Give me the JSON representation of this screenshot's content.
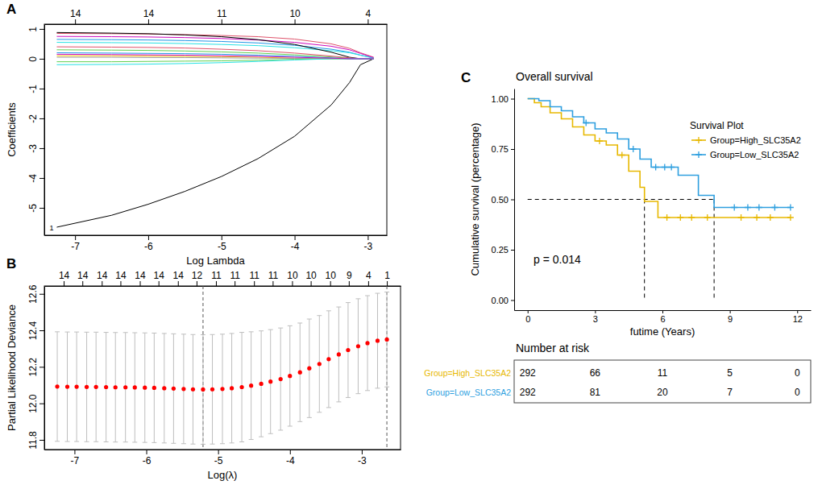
{
  "chart_data": [
    {
      "panel": "A",
      "type": "line",
      "x_label": "Log Lambda",
      "y_label": "Coefficients",
      "x": [
        -7.25,
        -6.5,
        -6,
        -5.5,
        -5,
        -4.5,
        -4,
        -3.5,
        -3.25,
        -3.1,
        -2.92
      ],
      "series": [
        {
          "name": "1",
          "color": "#000000",
          "values": [
            -5.65,
            -5.25,
            -4.88,
            -4.45,
            -3.95,
            -3.35,
            -2.6,
            -1.55,
            -0.8,
            -0.2,
            0
          ]
        },
        {
          "color": "#DF536B",
          "values": [
            0.85,
            0.84,
            0.83,
            0.81,
            0.78,
            0.74,
            0.66,
            0.5,
            0.35,
            0.2,
            0.05
          ]
        },
        {
          "color": "#61D04F",
          "values": [
            0.3,
            0.29,
            0.28,
            0.26,
            0.23,
            0.19,
            0.13,
            0.06,
            0.02,
            0,
            0
          ]
        },
        {
          "color": "#2297E6",
          "values": [
            0.65,
            0.64,
            0.63,
            0.61,
            0.58,
            0.53,
            0.45,
            0.32,
            0.22,
            0.12,
            0.02
          ]
        },
        {
          "color": "#28E2E5",
          "values": [
            0.55,
            0.54,
            0.53,
            0.51,
            0.48,
            0.44,
            0.37,
            0.27,
            0.2,
            0.12,
            0.03
          ]
        },
        {
          "color": "#CD0BBC",
          "values": [
            0.75,
            0.74,
            0.73,
            0.71,
            0.68,
            0.63,
            0.55,
            0.42,
            0.3,
            0.18,
            0.04
          ]
        },
        {
          "color": "#F5C710",
          "values": [
            0.1,
            0.1,
            0.09,
            0.08,
            0.07,
            0.05,
            0.02,
            0,
            0,
            0,
            0
          ]
        },
        {
          "color": "#9E9E9E",
          "values": [
            0.05,
            0.05,
            0.04,
            0.04,
            0.03,
            0.02,
            0.01,
            0,
            0,
            0,
            0
          ]
        },
        {
          "color": "#000000",
          "values": [
            0.88,
            0.86,
            0.84,
            0.8,
            0.74,
            0.64,
            0.48,
            0.22,
            0.05,
            0,
            0
          ]
        },
        {
          "color": "#DF536B",
          "values": [
            0.4,
            0.39,
            0.38,
            0.36,
            0.32,
            0.27,
            0.19,
            0.09,
            0.03,
            0,
            0
          ]
        },
        {
          "color": "#61D04F",
          "values": [
            -0.1,
            -0.1,
            -0.09,
            -0.08,
            -0.07,
            -0.05,
            -0.02,
            0,
            0,
            0,
            0
          ]
        },
        {
          "color": "#2297E6",
          "values": [
            0.2,
            0.19,
            0.18,
            0.17,
            0.15,
            0.12,
            0.08,
            0.03,
            0,
            0,
            0
          ]
        },
        {
          "color": "#28E2E5",
          "values": [
            -0.2,
            -0.19,
            -0.18,
            -0.16,
            -0.13,
            -0.09,
            -0.04,
            0,
            0,
            0,
            0
          ]
        },
        {
          "color": "#CD0BBC",
          "values": [
            0.15,
            0.14,
            0.13,
            0.12,
            0.1,
            0.08,
            0.05,
            0.02,
            0,
            0,
            0
          ]
        }
      ],
      "xlim": [
        -7.42,
        -2.74
      ],
      "xticks": [
        -7,
        -6,
        -5,
        -4,
        -3
      ],
      "ylim": [
        -5.92,
        1.16
      ],
      "yticks": [
        -5,
        -4,
        -3,
        -2,
        -1,
        0,
        1
      ],
      "x2ticks": [
        {
          "value": -7,
          "label": "14"
        },
        {
          "value": -6,
          "label": "14"
        },
        {
          "value": -5,
          "label": "11"
        },
        {
          "value": -4,
          "label": "10"
        },
        {
          "value": -3,
          "label": "4"
        }
      ]
    },
    {
      "panel": "B",
      "type": "errorbar",
      "x_label": "Log(λ)",
      "y_label": "Partial Likelihood Deviance",
      "color": "#FF0000",
      "x": [
        -7.24,
        -7.1,
        -6.97,
        -6.83,
        -6.7,
        -6.56,
        -6.43,
        -6.29,
        -6.16,
        -6.02,
        -5.89,
        -5.75,
        -5.62,
        -5.48,
        -5.35,
        -5.21,
        -5.08,
        -4.94,
        -4.81,
        -4.67,
        -4.54,
        -4.4,
        -4.27,
        -4.13,
        -4.0,
        -3.86,
        -3.73,
        -3.59,
        -3.46,
        -3.32,
        -3.19,
        -3.05,
        -2.92,
        -2.78,
        -2.65
      ],
      "values": [
        12.092,
        12.091,
        12.091,
        12.09,
        12.09,
        12.089,
        12.088,
        12.088,
        12.087,
        12.086,
        12.085,
        12.083,
        12.081,
        12.079,
        12.077,
        12.076,
        12.077,
        12.079,
        12.083,
        12.089,
        12.097,
        12.107,
        12.119,
        12.133,
        12.15,
        12.17,
        12.192,
        12.216,
        12.242,
        12.268,
        12.292,
        12.313,
        12.33,
        12.343,
        12.35
      ],
      "error": [
        0.3,
        0.3,
        0.3,
        0.3,
        0.3,
        0.3,
        0.3,
        0.3,
        0.3,
        0.3,
        0.3,
        0.3,
        0.3,
        0.3,
        0.3,
        0.3,
        0.3,
        0.3,
        0.3,
        0.3,
        0.295,
        0.29,
        0.285,
        0.28,
        0.275,
        0.27,
        0.27,
        0.265,
        0.265,
        0.26,
        0.26,
        0.26,
        0.26,
        0.26,
        0.26
      ],
      "vlines": [
        -5.21,
        -2.65
      ],
      "xlim": [
        -7.42,
        -2.46
      ],
      "xticks": [
        -7,
        -6,
        -5,
        -4,
        -3
      ],
      "ylim": [
        11.747,
        12.643
      ],
      "yticks": [
        11.8,
        {
          "value": 12,
          "label": "12.0"
        },
        12.2,
        12.4,
        12.6
      ],
      "x2ticks": [
        {
          "value": -7.15,
          "label": "14"
        },
        {
          "value": -6.89,
          "label": "14"
        },
        {
          "value": -6.62,
          "label": "14"
        },
        {
          "value": -6.36,
          "label": "14"
        },
        {
          "value": -6.09,
          "label": "14"
        },
        {
          "value": -5.83,
          "label": "14"
        },
        {
          "value": -5.56,
          "label": "14"
        },
        {
          "value": -5.3,
          "label": "12"
        },
        {
          "value": -5.03,
          "label": "11"
        },
        {
          "value": -4.77,
          "label": "11"
        },
        {
          "value": -4.5,
          "label": "11"
        },
        {
          "value": -4.24,
          "label": "11"
        },
        {
          "value": -3.97,
          "label": "10"
        },
        {
          "value": -3.71,
          "label": "10"
        },
        {
          "value": -3.44,
          "label": "10"
        },
        {
          "value": -3.18,
          "label": "9"
        },
        {
          "value": -2.91,
          "label": "4"
        },
        {
          "value": -2.65,
          "label": "1"
        }
      ]
    },
    {
      "panel": "C",
      "type": "step",
      "title": "Overall survival",
      "x_label": "futime (Years)",
      "y_label": "Cumulative survival (percentage)",
      "legend_title": "Survival Plot",
      "legend": "top-right",
      "annotation": "p = 0.014",
      "median_level": 0.5,
      "series": [
        {
          "name": "Group=High_SLC35A2",
          "color": "#E7B800",
          "x": [
            0,
            0.3,
            0.6,
            1,
            1.5,
            2,
            2.5,
            3,
            3.5,
            4,
            4.5,
            5,
            5.2,
            5.8,
            11.7
          ],
          "values": [
            1,
            0.98,
            0.96,
            0.93,
            0.9,
            0.86,
            0.82,
            0.79,
            0.77,
            0.72,
            0.64,
            0.56,
            0.49,
            0.41,
            0.41
          ],
          "censored": [
            3.2,
            4.2,
            6.2,
            6.8,
            7.3,
            8,
            9.5,
            10.2,
            10.8,
            11.7
          ],
          "median": 5.2
        },
        {
          "name": "Group=Low_SLC35A2",
          "color": "#2E9FDF",
          "x": [
            0,
            0.5,
            1,
            1.5,
            2,
            2.5,
            3,
            3.5,
            4,
            4.5,
            5,
            5.5,
            6.7,
            7.6,
            8.3,
            11.7
          ],
          "values": [
            1,
            0.99,
            0.96,
            0.94,
            0.91,
            0.88,
            0.85,
            0.83,
            0.8,
            0.75,
            0.7,
            0.66,
            0.62,
            0.52,
            0.46,
            0.46
          ],
          "censored": [
            2.6,
            4.7,
            5.7,
            6.1,
            6.4,
            9.2,
            9.8,
            10.3,
            11,
            11.7
          ],
          "median": 8.3
        }
      ],
      "xlim": [
        -0.6,
        12.6
      ],
      "xticks": [
        0,
        3,
        6,
        9,
        12
      ],
      "ylim": [
        -0.05,
        1.05
      ],
      "yticks": [
        {
          "value": 0,
          "label": "0.00"
        },
        {
          "value": 0.25,
          "label": "0.25"
        },
        {
          "value": 0.5,
          "label": "0.50"
        },
        {
          "value": 0.75,
          "label": "0.75"
        },
        {
          "value": 1,
          "label": "1.00"
        }
      ],
      "risk_table": {
        "title": "Number at risk",
        "times": [
          0,
          3,
          6,
          9,
          12
        ],
        "rows": [
          {
            "name": "Group=High_SLC35A2",
            "color": "#E7B800",
            "values": [
              292,
              66,
              11,
              5,
              0
            ]
          },
          {
            "name": "Group=Low_SLC35A2",
            "color": "#2E9FDF",
            "values": [
              292,
              81,
              20,
              7,
              0
            ]
          }
        ]
      }
    }
  ]
}
